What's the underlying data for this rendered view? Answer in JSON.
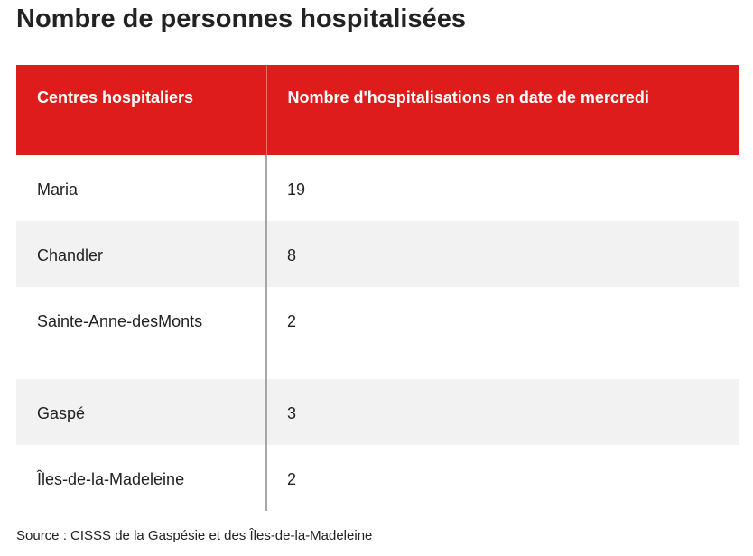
{
  "title": "Nombre de personnes hospitalisées",
  "source": "Source : CISSS de la Gaspésie et des Îles-de-la-Madeleine",
  "colors": {
    "header_bg": "#df1c1c",
    "header_text": "#ffffff",
    "stripe": "#f2f2f2",
    "divider": "#a7a7a7"
  },
  "chart_data": {
    "type": "table",
    "title": "Nombre de personnes hospitalisées",
    "columns": [
      "Centres hospitaliers",
      "Nombre d'hospitalisations en date de mercredi"
    ],
    "rows": [
      [
        "Maria",
        "19"
      ],
      [
        "Chandler",
        "8"
      ],
      [
        "Sainte-Anne-desMonts",
        "2"
      ],
      [
        "Gaspé",
        "3"
      ],
      [
        "Îles-de-la-Madeleine",
        "2"
      ]
    ]
  }
}
